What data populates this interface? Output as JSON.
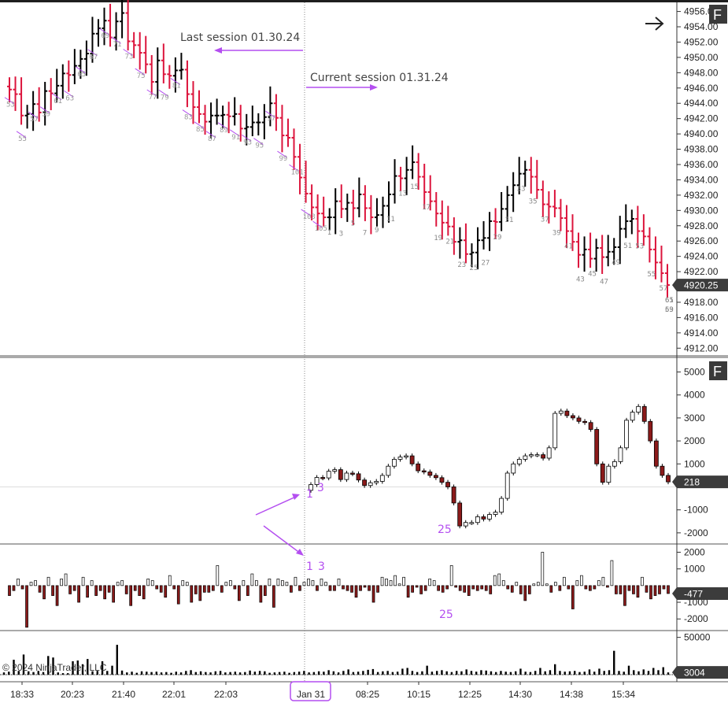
{
  "chart_data": [
    {
      "type": "bar",
      "panel": "price",
      "style": "OHLC bars",
      "y_ticks": [
        "4956.00",
        "4954.00",
        "4952.00",
        "4950.00",
        "4948.00",
        "4946.00",
        "4944.00",
        "4942.00",
        "4940.00",
        "4938.00",
        "4936.00",
        "4934.00",
        "4932.00",
        "4930.00",
        "4928.00",
        "4926.00",
        "4924.00",
        "4922.00",
        "4920.00",
        "4918.00",
        "4916.00",
        "4914.00",
        "4912.00"
      ],
      "ylim": [
        4911,
        4957.5
      ],
      "last_price": "4920.25",
      "series": [
        {
          "values": [
            4945.8,
            4945.2,
            4942.4,
            4942.6,
            4943.9,
            4942.8,
            4945.6,
            4945.3,
            4946.3,
            4947.9,
            4947.7,
            4948.9,
            4949.8,
            4950.5,
            4953.1,
            4953.8,
            4954.8,
            4952.6,
            4954.7,
            4955.8,
            4952.1,
            4951.6,
            4950.6,
            4949.1,
            4946.8,
            4949.6,
            4947.8,
            4947.6,
            4948.3,
            4948.4,
            4945.2,
            4943.5,
            4942.6,
            4941.6,
            4942.4,
            4942.4,
            4942.5,
            4942.3,
            4942.6,
            4940.7,
            4940.9,
            4941.5,
            4941.5,
            4942.2,
            4944.0,
            4942.1,
            4939.8,
            4939.5,
            4937.0,
            4934.3,
            4932.2,
            4930.4,
            4929.6,
            4929.1,
            4929.1,
            4931.2,
            4930.2,
            4931.0,
            4930.3,
            4932.1,
            4930.3,
            4929.1,
            4929.4,
            4930.6,
            4932.1,
            4934.5,
            4934.2,
            4935.3,
            4936.3,
            4934.4,
            4932.4,
            4931.2,
            4929.6,
            4928.4,
            4927.9,
            4925.9,
            4926.1,
            4924.3,
            4924.5,
            4926.1,
            4926.4,
            4928.6,
            4928.5,
            4930.2,
            4932.0,
            4933.3,
            4934.8,
            4935.3,
            4934.4,
            4932.7,
            4930.8,
            4930.5,
            4930.3,
            4929.0,
            4927.3,
            4925.9,
            4924.2,
            4924.9,
            4923.7,
            4925.1,
            4923.9,
            4924.6,
            4925.2,
            4927.6,
            4928.6,
            4928.9,
            4927.3,
            4926.6,
            4924.9,
            4923.2,
            4921.8,
            4920.25
          ]
        }
      ],
      "bar_labels": {
        "last_session": [
          "53",
          "55",
          "57",
          "59",
          "61",
          "63",
          "65",
          "67",
          "69",
          "71",
          "73",
          "75",
          "77",
          "79",
          "81",
          "83",
          "85",
          "87",
          "89",
          "91",
          "93",
          "95",
          "97",
          "99",
          "101",
          "103",
          "105"
        ],
        "current_session": [
          "1",
          "3",
          "5",
          "7",
          "9",
          "11",
          "13",
          "15",
          "17",
          "19",
          "21",
          "23",
          "25",
          "27",
          "29",
          "31",
          "33",
          "35",
          "37",
          "39",
          "41",
          "43",
          "45",
          "47",
          "49",
          "51",
          "53",
          "55",
          "57",
          "59",
          "61",
          "63",
          "65"
        ]
      },
      "annotations": [
        "Last session 01.30.24",
        "Current session 01.31.24"
      ]
    },
    {
      "type": "bar",
      "panel": "cumulative delta",
      "style": "candlesticks",
      "y_ticks": [
        "5000",
        "4000",
        "3000",
        "2000",
        "1000",
        "-1000",
        "-2000"
      ],
      "ylim": [
        -2450,
        5600
      ],
      "last_value": "218",
      "series": [
        {
          "values": [
            100,
            410,
            390,
            680,
            750,
            320,
            600,
            570,
            300,
            60,
            180,
            240,
            500,
            900,
            1200,
            1300,
            1350,
            1000,
            700,
            650,
            500,
            400,
            200,
            0,
            -700,
            -1700,
            -1550,
            -1550,
            -1300,
            -1400,
            -1200,
            -1100,
            -500,
            600,
            1000,
            1200,
            1350,
            1400,
            1400,
            1250,
            1700,
            3200,
            3300,
            3100,
            3000,
            2850,
            2800,
            2500,
            1000,
            200,
            900,
            1100,
            1700,
            2900,
            3250,
            3500,
            2850,
            2000,
            900,
            500,
            218
          ]
        }
      ],
      "annotations": [
        "1",
        "3",
        "25"
      ]
    },
    {
      "type": "bar",
      "panel": "bar delta",
      "style": "candlesticks from zero",
      "y_ticks": [
        "2000",
        "1000",
        "-1000",
        "-2000"
      ],
      "ylim": [
        -2650,
        2400
      ],
      "last_value": "-477",
      "series": [
        {
          "values": [
            -600,
            -300,
            400,
            -200,
            -2500,
            200,
            300,
            -400,
            -800,
            500,
            -600,
            -1200,
            400,
            700,
            -500,
            -300,
            -1000,
            500,
            -700,
            300,
            -600,
            -300,
            -800,
            -400,
            -1000,
            200,
            300,
            -500,
            -1200,
            -300,
            -600,
            -800,
            400,
            300,
            -200,
            -400,
            -700,
            600,
            -200,
            -1100,
            300,
            200,
            -1000,
            -500,
            -900,
            -400,
            -400,
            -300,
            1200,
            -400,
            200,
            300,
            -200,
            -900,
            300,
            -600,
            700,
            300,
            -1000,
            -600,
            400,
            -1300,
            400,
            300,
            200,
            -400,
            500,
            -300,
            200,
            400,
            300,
            -300,
            400,
            200,
            -300,
            -300,
            400,
            -200,
            -300,
            -400,
            -700,
            -300,
            -100,
            -300,
            -1000,
            -400,
            500,
            400,
            300,
            600,
            100,
            500,
            -700,
            -400,
            -100,
            -500,
            -300,
            400,
            300,
            -300,
            -400,
            -200,
            1200,
            -100,
            -300,
            -400,
            -600,
            -200,
            -300,
            -200,
            -300,
            -500,
            600,
            700,
            300,
            -200,
            -400,
            200,
            -500,
            -900,
            -500,
            100,
            200,
            2000,
            100,
            -400,
            200,
            -300,
            500,
            -200,
            -1400,
            300,
            600,
            -200,
            -300,
            -200,
            300,
            500,
            -100,
            1500,
            -500,
            -500,
            -1200,
            -300,
            -500,
            -700,
            500,
            -400,
            -800,
            -600,
            -500,
            -200,
            -477
          ]
        }
      ],
      "annotations": [
        "1",
        "3",
        "25"
      ]
    },
    {
      "type": "bar",
      "panel": "volume",
      "y_ticks": [
        "50000"
      ],
      "ylim": [
        0,
        57000
      ],
      "last_value": "3004",
      "series": [
        {
          "values": [
            3000,
            4000,
            20000,
            5000,
            27000,
            4500,
            3500,
            5000,
            3500,
            25000,
            23000,
            3000,
            2000,
            2000,
            18000,
            19000,
            14000,
            21000,
            4500,
            5000,
            18000,
            5000,
            12000,
            40000,
            5500,
            3000,
            4000,
            2500,
            4500,
            4000,
            3500,
            4000,
            3000,
            3500,
            2500,
            4000,
            3000,
            5000,
            6000,
            3500,
            4500,
            3500,
            3000,
            4500,
            5000,
            3000,
            3500,
            4000,
            3000,
            3500,
            5500,
            4000,
            5000,
            4500,
            2500,
            3000,
            3500,
            4000,
            2500,
            3500,
            4000,
            5000,
            3000,
            3500,
            4500,
            4000,
            6000,
            4500,
            3000,
            5000,
            7000,
            3500,
            4000,
            5000,
            6500,
            7500,
            3500,
            4500,
            5000,
            3500,
            4000,
            8000,
            9000,
            5000,
            3500,
            4500,
            12000,
            4000,
            5000,
            6000,
            4500,
            3500,
            5000,
            4500,
            7000,
            5000,
            4000,
            6000,
            5500,
            4500,
            3500,
            5000,
            4000,
            3500,
            4500,
            8000,
            4000,
            3500,
            5000,
            9000,
            4500,
            6000,
            14000,
            5000,
            4000,
            4500,
            5000,
            3500,
            4000,
            7000,
            4000,
            8000,
            5000,
            6000,
            32000,
            5000,
            4000,
            12000,
            6000,
            4500,
            7000,
            5000,
            9000,
            6000,
            10000,
            3004
          ]
        }
      ]
    }
  ],
  "x_axis": {
    "labels": [
      "18:33",
      "20:23",
      "21:40",
      "22:01",
      "22:03",
      "Jan 31",
      "08:25",
      "10:15",
      "12:25",
      "14:30",
      "14:38",
      "15:34"
    ],
    "highlighted": "Jan 31"
  },
  "panels": {
    "price_menu_label": "F",
    "delta_menu_label": "F",
    "arrow_icon": "arrow-right-icon"
  },
  "copyright": "© 2024 NinjaTrader, LLC",
  "colors": {
    "up_bar": "#000000",
    "down_bar": "#dc143c",
    "annotation": "#b44ff0",
    "candle_down": "#8b1a1a",
    "gridline": "#dddddd",
    "price_badge": "#3c3c3c"
  }
}
